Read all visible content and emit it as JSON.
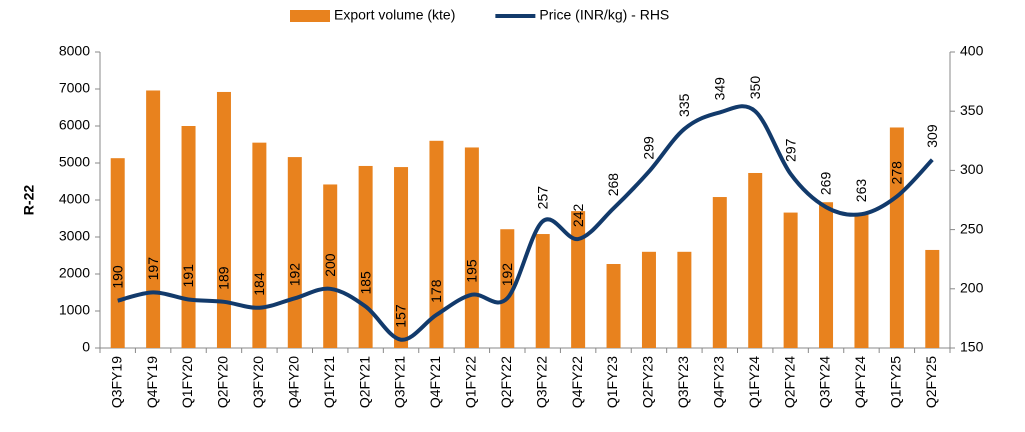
{
  "chart_data": {
    "type": "bar_line",
    "ylabel": "R-22",
    "categories": [
      "Q3FY19",
      "Q4FY19",
      "Q1FY20",
      "Q2FY20",
      "Q3FY20",
      "Q4FY20",
      "Q1FY21",
      "Q2FY21",
      "Q3FY21",
      "Q4FY21",
      "Q1FY22",
      "Q2FY22",
      "Q3FY22",
      "Q4FY22",
      "Q1FY23",
      "Q2FY23",
      "Q3FY23",
      "Q4FY23",
      "Q1FY24",
      "Q2FY24",
      "Q3FY24",
      "Q4FY24",
      "Q1FY25",
      "Q2FY25"
    ],
    "series": [
      {
        "name": "Export volume (kte)",
        "type": "bar",
        "color": "#e8821e",
        "values": [
          5130,
          6960,
          6000,
          6920,
          5550,
          5160,
          4420,
          4920,
          4890,
          5600,
          5420,
          3210,
          3080,
          3700,
          2270,
          2600,
          2600,
          4080,
          4730,
          3660,
          3940,
          3640,
          5960,
          2650
        ]
      },
      {
        "name": "Price (INR/kg) - RHS",
        "type": "line",
        "axis": "y2",
        "color": "#123a6b",
        "data_labels": true,
        "values": [
          190,
          197,
          191,
          189,
          184,
          192,
          200,
          185,
          157,
          178,
          195,
          192,
          257,
          242,
          268,
          299,
          335,
          349,
          350,
          297,
          269,
          263,
          278,
          309
        ]
      }
    ],
    "ylim": [
      0,
      8000
    ],
    "yticks": [
      0,
      1000,
      2000,
      3000,
      4000,
      5000,
      6000,
      7000,
      8000
    ],
    "y2lim": [
      150,
      400
    ],
    "y2ticks": [
      150,
      200,
      250,
      300,
      350,
      400
    ]
  }
}
